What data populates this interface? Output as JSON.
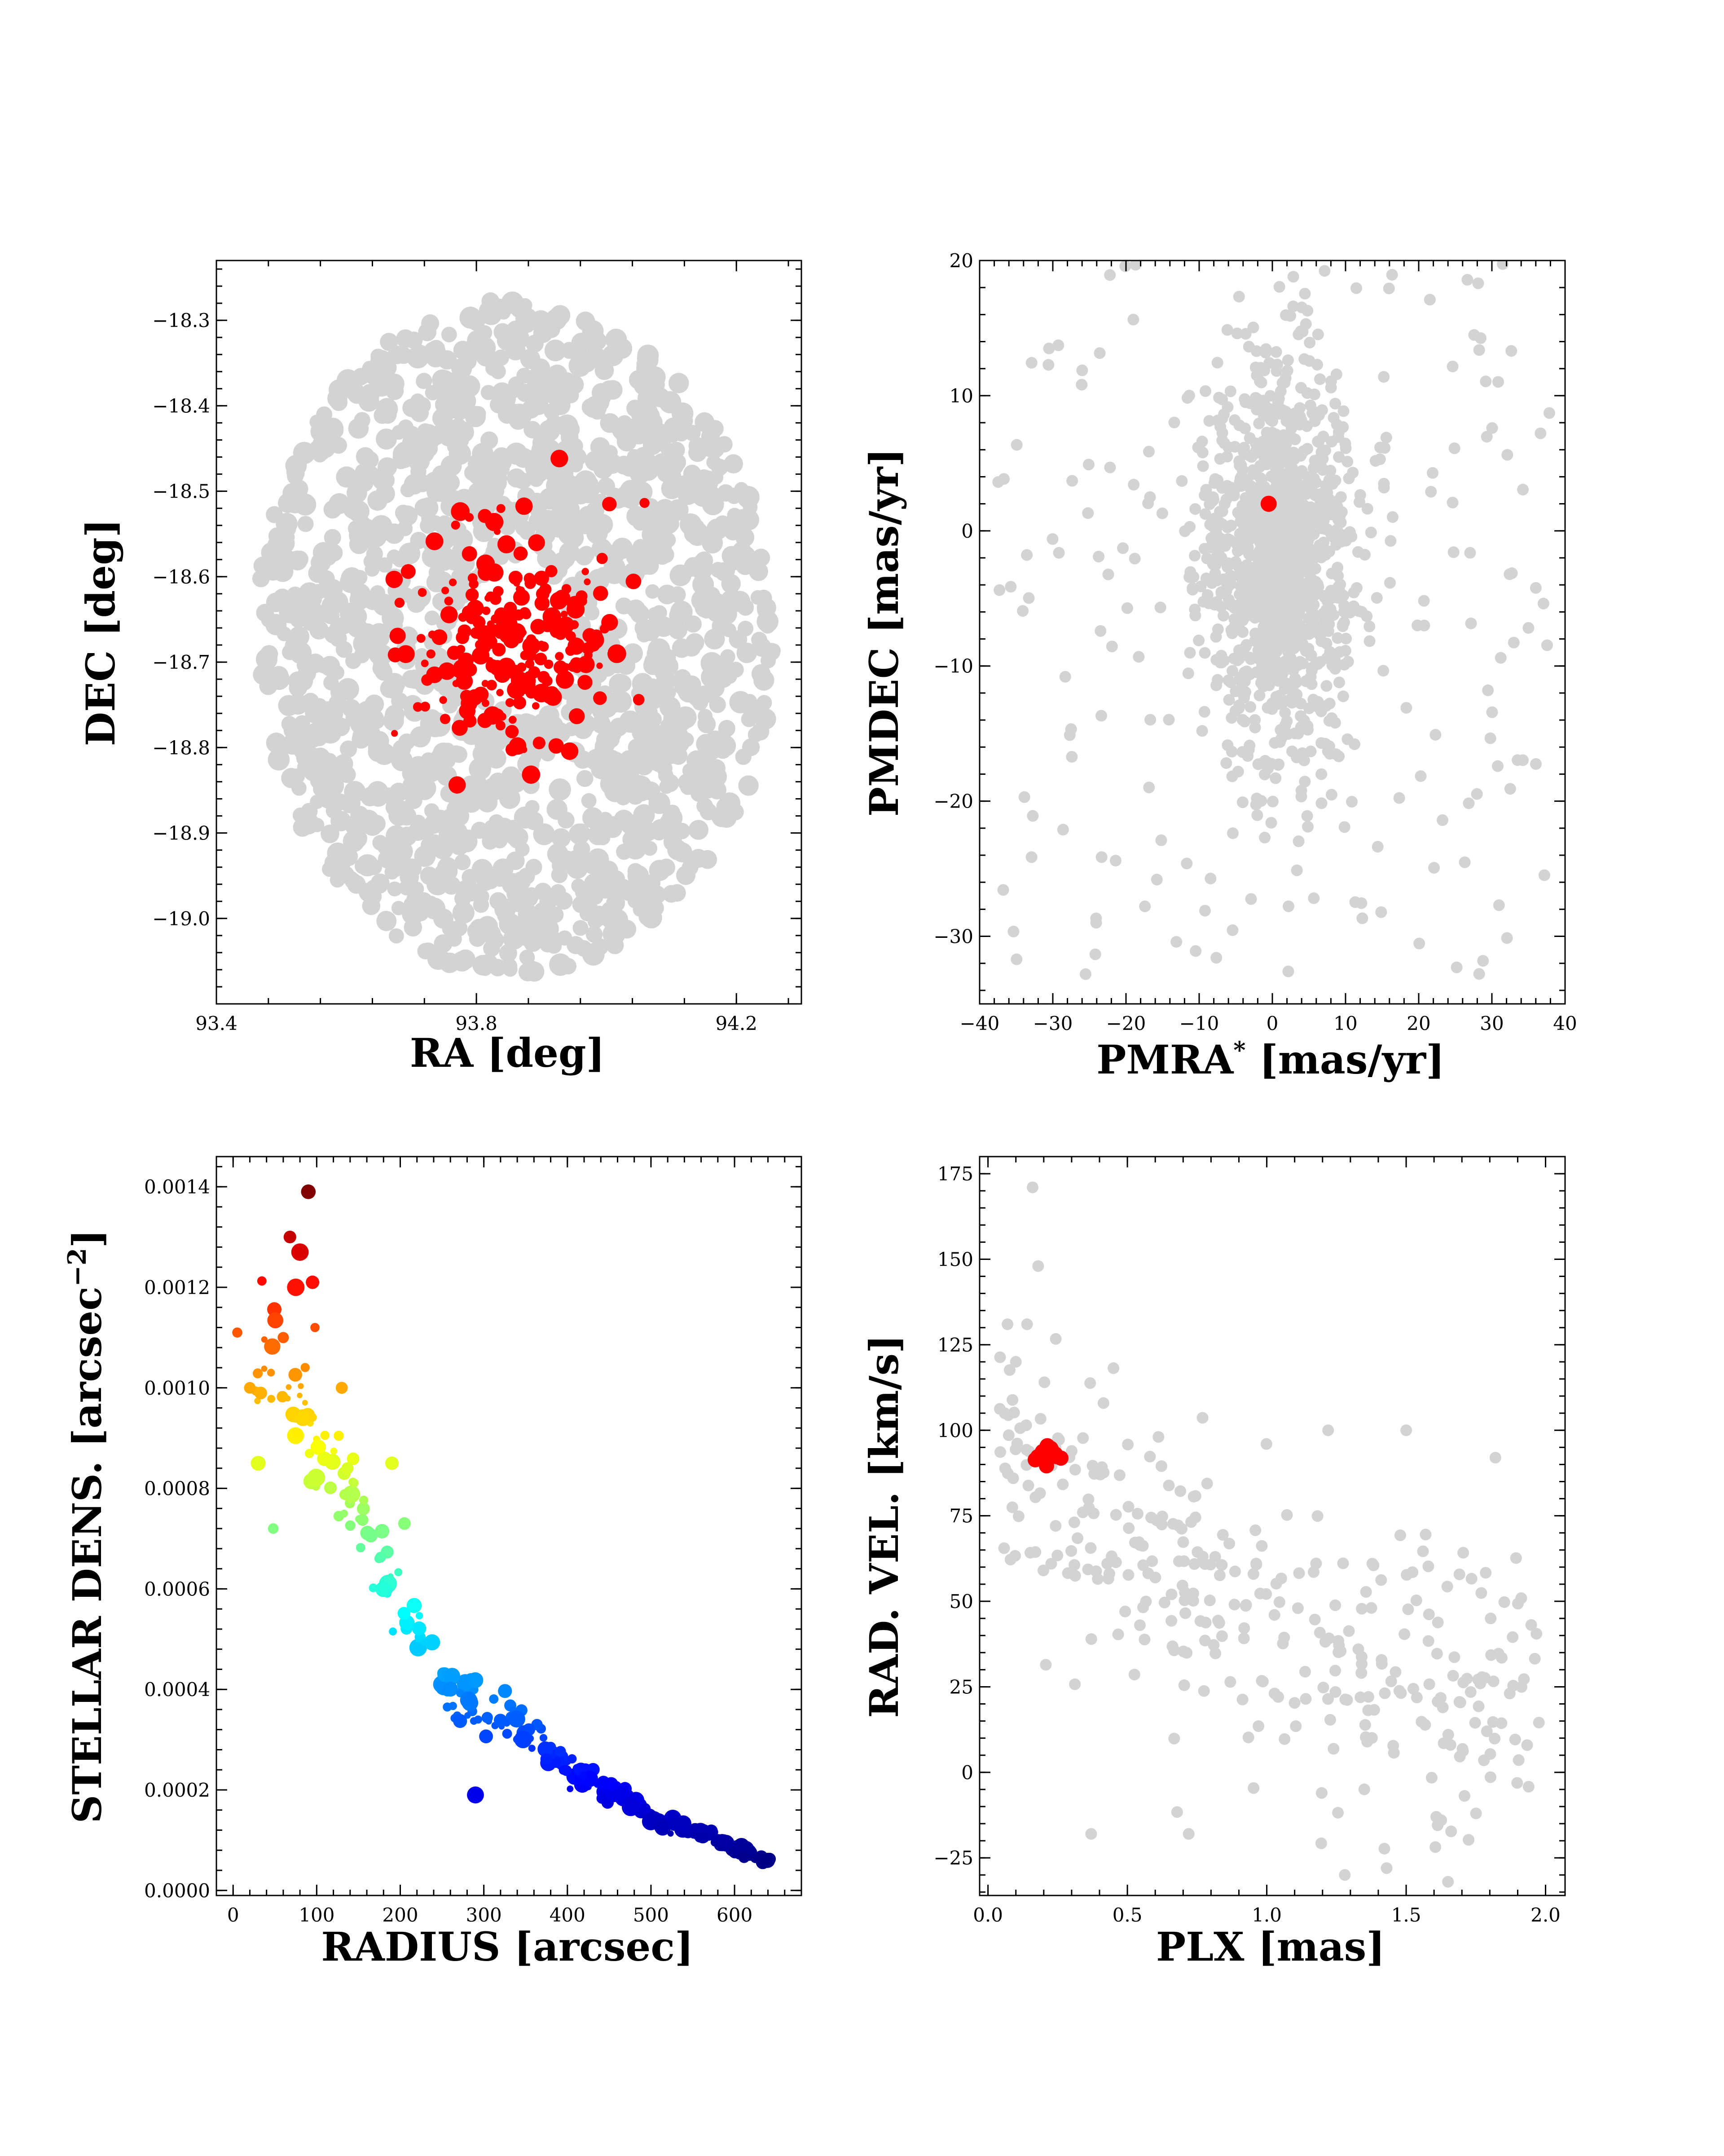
{
  "colors": {
    "field_star": "#d3d3d3",
    "member": "#ff0000",
    "axis": "#000000",
    "density_colormap": "jet"
  },
  "chart_data": [
    {
      "id": "sky",
      "type": "scatter",
      "xlabel": "RA [deg]",
      "ylabel": "DEC [deg]",
      "xlim": [
        93.4,
        94.3
      ],
      "ylim": [
        -19.1,
        -18.23
      ],
      "xticks": [
        93.4,
        93.8,
        94.2
      ],
      "xtick_labels": [
        "93.4",
        "93.8",
        "94.2"
      ],
      "yticks": [
        -18.3,
        -18.4,
        -18.5,
        -18.6,
        -18.7,
        -18.8,
        -18.9,
        -19.0
      ],
      "ytick_labels": [
        "−18.3",
        "−18.4",
        "−18.5",
        "−18.6",
        "−18.7",
        "−18.8",
        "−18.9",
        "−19.0"
      ],
      "grid": false,
      "series": [
        {
          "role": "field",
          "color": "#d3d3d3",
          "distribution": "elliptical field",
          "center": [
            93.86,
            -18.67
          ],
          "semi_axes": [
            0.4,
            0.395
          ],
          "count": 1500
        },
        {
          "role": "members",
          "color": "#ff0000",
          "distribution": "central cluster",
          "center": [
            93.86,
            -18.67
          ],
          "spread": [
            0.08,
            0.065
          ],
          "count": 230
        }
      ]
    },
    {
      "id": "proper-motion",
      "type": "scatter",
      "xlabel": "PMRA",
      "xlabel_sup": "*",
      "xlabel_unit": " [mas/yr]",
      "ylabel": "PMDEC [mas/yr]",
      "xlim": [
        -40,
        40
      ],
      "ylim": [
        -35,
        20
      ],
      "xticks": [
        -40,
        -30,
        -20,
        -10,
        0,
        10,
        20,
        30,
        40
      ],
      "xtick_labels": [
        "−40",
        "−30",
        "−20",
        "−10",
        "0",
        "10",
        "20",
        "30",
        "40"
      ],
      "yticks": [
        20,
        10,
        0,
        -10,
        -20,
        -30
      ],
      "ytick_labels": [
        "20",
        "10",
        "0",
        "−10",
        "−20",
        "−30"
      ],
      "grid": false,
      "series": [
        {
          "role": "field",
          "color": "#d3d3d3",
          "center": [
            1,
            -2
          ],
          "spread": [
            5,
            7
          ],
          "count": 1400
        },
        {
          "role": "members",
          "color": "#ff0000",
          "center": [
            -0.5,
            2.0
          ],
          "count": 1
        }
      ]
    },
    {
      "id": "density-profile",
      "type": "scatter",
      "xlabel": "RADIUS [arcsec]",
      "ylabel": "STELLAR DENS. [arcsec",
      "ylabel_sup": "−2",
      "ylabel_end": "]",
      "xlim": [
        -20,
        680
      ],
      "ylim": [
        -1e-05,
        0.00146
      ],
      "xticks": [
        0,
        100,
        200,
        300,
        400,
        500,
        600
      ],
      "xtick_labels": [
        "0",
        "100",
        "200",
        "300",
        "400",
        "500",
        "600"
      ],
      "yticks": [
        0,
        0.0002,
        0.0004,
        0.0006,
        0.0008,
        0.001,
        0.0012,
        0.0014
      ],
      "ytick_labels": [
        "0.0000",
        "0.0002",
        "0.0004",
        "0.0006",
        "0.0008",
        "0.0010",
        "0.0012",
        "0.0014"
      ],
      "grid": false,
      "color_by": "stellar density (jet colormap)",
      "trend": {
        "model": "decreasing with radius",
        "anchor_points": [
          [
            60,
            0.00104
          ],
          [
            150,
            0.00074
          ],
          [
            250,
            0.00041
          ],
          [
            400,
            0.00025
          ],
          [
            500,
            0.00015
          ],
          [
            640,
            6e-05
          ]
        ]
      },
      "points": [
        {
          "x": 90,
          "y": 0.00139
        },
        {
          "x": 68,
          "y": 0.0013
        },
        {
          "x": 80,
          "y": 0.00127
        },
        {
          "x": 75,
          "y": 0.0012
        },
        {
          "x": 95,
          "y": 0.00121
        },
        {
          "x": 5,
          "y": 0.00111
        },
        {
          "x": 60,
          "y": 0.0011
        },
        {
          "x": 98,
          "y": 0.00112
        },
        {
          "x": 20,
          "y": 0.001
        },
        {
          "x": 130,
          "y": 0.001
        },
        {
          "x": 30,
          "y": 0.00085
        },
        {
          "x": 190,
          "y": 0.00085
        },
        {
          "x": 48,
          "y": 0.00072
        },
        {
          "x": 205,
          "y": 0.00073
        },
        {
          "x": 290,
          "y": 0.00019
        },
        {
          "x": 640,
          "y": 6e-05
        }
      ],
      "count": 260
    },
    {
      "id": "velocity-parallax",
      "type": "scatter",
      "xlabel": "PLX [mas]",
      "ylabel": "RAD. VEL. [km/s]",
      "xlim": [
        -0.03,
        2.07
      ],
      "ylim": [
        -36,
        180
      ],
      "xticks": [
        0.0,
        0.5,
        1.0,
        1.5,
        2.0
      ],
      "xtick_labels": [
        "0.0",
        "0.5",
        "1.0",
        "1.5",
        "2.0"
      ],
      "yticks": [
        175,
        150,
        125,
        100,
        75,
        50,
        25,
        0,
        -25
      ],
      "ytick_labels": [
        "175",
        "150",
        "125",
        "100",
        "75",
        "50",
        "25",
        "0",
        "−25"
      ],
      "grid": false,
      "series": [
        {
          "role": "field",
          "color": "#d3d3d3",
          "trend": "velocity decreases with parallax",
          "count": 330
        },
        {
          "role": "members",
          "color": "#ff0000",
          "center": [
            0.22,
            92.5
          ],
          "spread": [
            0.025,
            1.6
          ],
          "count": 20
        }
      ]
    }
  ]
}
